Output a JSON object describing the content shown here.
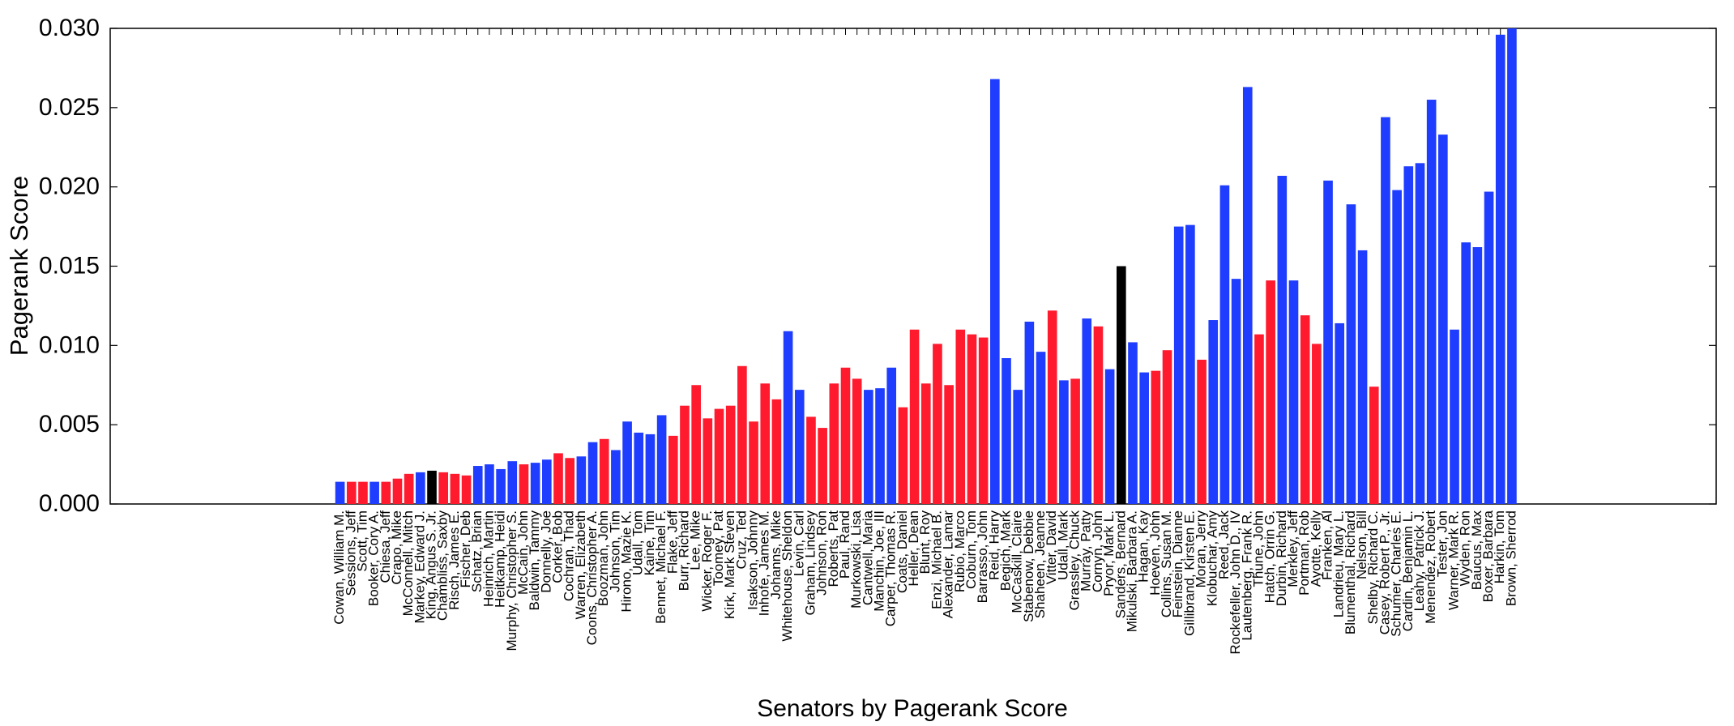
{
  "chart_data": {
    "type": "bar",
    "xlabel": "Senators by Pagerank Score",
    "ylabel": "Pagerank Score",
    "ylim": [
      0,
      0.03
    ],
    "yticks": [
      "0.000",
      "0.005",
      "0.010",
      "0.015",
      "0.020",
      "0.025",
      "0.030"
    ],
    "ytick_values": [
      0,
      0.005,
      0.01,
      0.015,
      0.02,
      0.025,
      0.03
    ],
    "grid": false,
    "colors": {
      "D": "#1f3dff",
      "R": "#ff1a2e",
      "I": "#000000"
    },
    "bars": [
      {
        "name": "Cowan, William M.",
        "value": 0.0014,
        "party": "D"
      },
      {
        "name": "Sessions, Jeff",
        "value": 0.0014,
        "party": "R"
      },
      {
        "name": "Scott, Tim",
        "value": 0.0014,
        "party": "R"
      },
      {
        "name": "Booker, Cory A.",
        "value": 0.0014,
        "party": "D"
      },
      {
        "name": "Chiesa, Jeff",
        "value": 0.0014,
        "party": "R"
      },
      {
        "name": "Crapo, Mike",
        "value": 0.0016,
        "party": "R"
      },
      {
        "name": "McConnell, Mitch",
        "value": 0.0019,
        "party": "R"
      },
      {
        "name": "Markey, Edward J.",
        "value": 0.002,
        "party": "D"
      },
      {
        "name": "King, Angus S. Jr.",
        "value": 0.0021,
        "party": "I"
      },
      {
        "name": "Chambliss, Saxby",
        "value": 0.002,
        "party": "R"
      },
      {
        "name": "Risch, James E.",
        "value": 0.0019,
        "party": "R"
      },
      {
        "name": "Fischer, Deb",
        "value": 0.0018,
        "party": "R"
      },
      {
        "name": "Schatz, Brian",
        "value": 0.0024,
        "party": "D"
      },
      {
        "name": "Heinrich, Martin",
        "value": 0.0025,
        "party": "D"
      },
      {
        "name": "Heitkamp, Heidi",
        "value": 0.0022,
        "party": "D"
      },
      {
        "name": "Murphy, Christopher S.",
        "value": 0.0027,
        "party": "D"
      },
      {
        "name": "McCain, John",
        "value": 0.0025,
        "party": "R"
      },
      {
        "name": "Baldwin, Tammy",
        "value": 0.0026,
        "party": "D"
      },
      {
        "name": "Donnelly, Joe",
        "value": 0.0028,
        "party": "D"
      },
      {
        "name": "Corker, Bob",
        "value": 0.0032,
        "party": "R"
      },
      {
        "name": "Cochran, Thad",
        "value": 0.0029,
        "party": "R"
      },
      {
        "name": "Warren, Elizabeth",
        "value": 0.003,
        "party": "D"
      },
      {
        "name": "Coons, Christopher A.",
        "value": 0.0039,
        "party": "D"
      },
      {
        "name": "Boozman, John",
        "value": 0.0041,
        "party": "R"
      },
      {
        "name": "Johnson, Tim",
        "value": 0.0034,
        "party": "D"
      },
      {
        "name": "Hirono, Mazie K.",
        "value": 0.0052,
        "party": "D"
      },
      {
        "name": "Udall, Tom",
        "value": 0.0045,
        "party": "D"
      },
      {
        "name": "Kaine, Tim",
        "value": 0.0044,
        "party": "D"
      },
      {
        "name": "Bennet, Michael F.",
        "value": 0.0056,
        "party": "D"
      },
      {
        "name": "Flake, Jeff",
        "value": 0.0043,
        "party": "R"
      },
      {
        "name": "Burr, Richard",
        "value": 0.0062,
        "party": "R"
      },
      {
        "name": "Lee, Mike",
        "value": 0.0075,
        "party": "R"
      },
      {
        "name": "Wicker, Roger F.",
        "value": 0.0054,
        "party": "R"
      },
      {
        "name": "Toomey, Pat",
        "value": 0.006,
        "party": "R"
      },
      {
        "name": "Kirk, Mark Steven",
        "value": 0.0062,
        "party": "R"
      },
      {
        "name": "Cruz, Ted",
        "value": 0.0087,
        "party": "R"
      },
      {
        "name": "Isakson, Johnny",
        "value": 0.0052,
        "party": "R"
      },
      {
        "name": "Inhofe, James M.",
        "value": 0.0076,
        "party": "R"
      },
      {
        "name": "Johanns, Mike",
        "value": 0.0066,
        "party": "R"
      },
      {
        "name": "Whitehouse, Sheldon",
        "value": 0.0109,
        "party": "D"
      },
      {
        "name": "Levin, Carl",
        "value": 0.0072,
        "party": "D"
      },
      {
        "name": "Graham, Lindsey",
        "value": 0.0055,
        "party": "R"
      },
      {
        "name": "Johnson, Ron",
        "value": 0.0048,
        "party": "R"
      },
      {
        "name": "Roberts, Pat",
        "value": 0.0076,
        "party": "R"
      },
      {
        "name": "Paul, Rand",
        "value": 0.0086,
        "party": "R"
      },
      {
        "name": "Murkowski, Lisa",
        "value": 0.0079,
        "party": "R"
      },
      {
        "name": "Cantwell, Maria",
        "value": 0.0072,
        "party": "D"
      },
      {
        "name": "Manchin, Joe, III",
        "value": 0.0073,
        "party": "D"
      },
      {
        "name": "Carper, Thomas R.",
        "value": 0.0086,
        "party": "D"
      },
      {
        "name": "Coats, Daniel",
        "value": 0.0061,
        "party": "R"
      },
      {
        "name": "Heller, Dean",
        "value": 0.011,
        "party": "R"
      },
      {
        "name": "Blunt, Roy",
        "value": 0.0076,
        "party": "R"
      },
      {
        "name": "Enzi, Michael B.",
        "value": 0.0101,
        "party": "R"
      },
      {
        "name": "Alexander, Lamar",
        "value": 0.0075,
        "party": "R"
      },
      {
        "name": "Rubio, Marco",
        "value": 0.011,
        "party": "R"
      },
      {
        "name": "Coburn, Tom",
        "value": 0.0107,
        "party": "R"
      },
      {
        "name": "Barrasso, John",
        "value": 0.0105,
        "party": "R"
      },
      {
        "name": "Reid, Harry",
        "value": 0.0268,
        "party": "D"
      },
      {
        "name": "Begich, Mark",
        "value": 0.0092,
        "party": "D"
      },
      {
        "name": "McCaskill, Claire",
        "value": 0.0072,
        "party": "D"
      },
      {
        "name": "Stabenow, Debbie",
        "value": 0.0115,
        "party": "D"
      },
      {
        "name": "Shaheen, Jeanne",
        "value": 0.0096,
        "party": "D"
      },
      {
        "name": "Vitter, David",
        "value": 0.0122,
        "party": "R"
      },
      {
        "name": "Udall, Mark",
        "value": 0.0078,
        "party": "D"
      },
      {
        "name": "Grassley, Chuck",
        "value": 0.0079,
        "party": "R"
      },
      {
        "name": "Murray, Patty",
        "value": 0.0117,
        "party": "D"
      },
      {
        "name": "Cornyn, John",
        "value": 0.0112,
        "party": "R"
      },
      {
        "name": "Pryor, Mark L.",
        "value": 0.0085,
        "party": "D"
      },
      {
        "name": "Sanders, Bernard",
        "value": 0.015,
        "party": "I"
      },
      {
        "name": "Mikulski, Barbara A.",
        "value": 0.0102,
        "party": "D"
      },
      {
        "name": "Hagan, Kay",
        "value": 0.0083,
        "party": "D"
      },
      {
        "name": "Hoeven, John",
        "value": 0.0084,
        "party": "R"
      },
      {
        "name": "Collins, Susan M.",
        "value": 0.0097,
        "party": "R"
      },
      {
        "name": "Feinstein, Dianne",
        "value": 0.0175,
        "party": "D"
      },
      {
        "name": "Gillibrand, Kirsten E.",
        "value": 0.0176,
        "party": "D"
      },
      {
        "name": "Moran, Jerry",
        "value": 0.0091,
        "party": "R"
      },
      {
        "name": "Klobuchar, Amy",
        "value": 0.0116,
        "party": "D"
      },
      {
        "name": "Reed, Jack",
        "value": 0.0201,
        "party": "D"
      },
      {
        "name": "Rockefeller, John D., IV",
        "value": 0.0142,
        "party": "D"
      },
      {
        "name": "Lautenberg, Frank R.",
        "value": 0.0263,
        "party": "D"
      },
      {
        "name": "Thune, John",
        "value": 0.0107,
        "party": "R"
      },
      {
        "name": "Hatch, Orrin G.",
        "value": 0.0141,
        "party": "R"
      },
      {
        "name": "Durbin, Richard",
        "value": 0.0207,
        "party": "D"
      },
      {
        "name": "Merkley, Jeff",
        "value": 0.0141,
        "party": "D"
      },
      {
        "name": "Portman, Rob",
        "value": 0.0119,
        "party": "R"
      },
      {
        "name": "Ayotte, Kelly",
        "value": 0.0101,
        "party": "R"
      },
      {
        "name": "Franken, Al",
        "value": 0.0204,
        "party": "D"
      },
      {
        "name": "Landrieu, Mary L.",
        "value": 0.0114,
        "party": "D"
      },
      {
        "name": "Blumenthal, Richard",
        "value": 0.0189,
        "party": "D"
      },
      {
        "name": "Nelson, Bill",
        "value": 0.016,
        "party": "D"
      },
      {
        "name": "Shelby, Richard C.",
        "value": 0.0074,
        "party": "R"
      },
      {
        "name": "Casey, Robert P., Jr.",
        "value": 0.0244,
        "party": "D"
      },
      {
        "name": "Schumer, Charles E.",
        "value": 0.0198,
        "party": "D"
      },
      {
        "name": "Cardin, Benjamin L.",
        "value": 0.0213,
        "party": "D"
      },
      {
        "name": "Leahy, Patrick J.",
        "value": 0.0215,
        "party": "D"
      },
      {
        "name": "Menendez, Robert",
        "value": 0.0255,
        "party": "D"
      },
      {
        "name": "Tester, Jon",
        "value": 0.0233,
        "party": "D"
      },
      {
        "name": "Warner, Mark R.",
        "value": 0.011,
        "party": "D"
      },
      {
        "name": "Wyden, Ron",
        "value": 0.0165,
        "party": "D"
      },
      {
        "name": "Baucus, Max",
        "value": 0.0162,
        "party": "D"
      },
      {
        "name": "Boxer, Barbara",
        "value": 0.0197,
        "party": "D"
      },
      {
        "name": "Harkin, Tom",
        "value": 0.0296,
        "party": "D"
      },
      {
        "name": "Brown, Sherrod",
        "value": 0.03,
        "party": "D"
      }
    ]
  }
}
